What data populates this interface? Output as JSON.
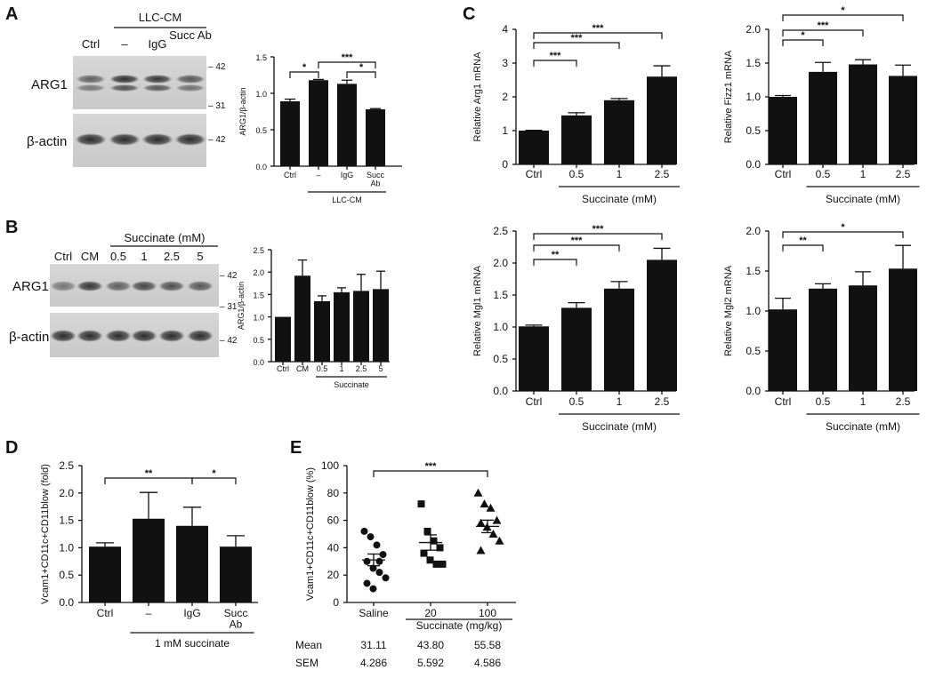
{
  "panel_labels": {
    "A": "A",
    "B": "B",
    "C": "C",
    "D": "D",
    "E": "E"
  },
  "blot_A": {
    "group_header": "LLC-CM",
    "lanes": [
      "Ctrl",
      "–",
      "IgG",
      "Succ\nAb"
    ],
    "protein_top": "ARG1",
    "protein_bottom": "β-actin",
    "mw_top": [
      "– 42",
      "– 31"
    ],
    "mw_bottom": "– 42"
  },
  "blot_B": {
    "group_header": "Succinate (mM)",
    "lanes": [
      "Ctrl",
      "CM",
      "0.5",
      "1",
      "2.5",
      "5"
    ],
    "protein_top": "ARG1",
    "protein_bottom": "β-actin",
    "mw_top": [
      "– 42",
      "– 31"
    ],
    "mw_bottom": "– 42"
  },
  "stats_E": {
    "row_labels": [
      "Mean",
      "SEM"
    ],
    "mean": [
      "31.11",
      "43.80",
      "55.58"
    ],
    "sem": [
      "4.286",
      "5.592",
      "4.586"
    ]
  },
  "chart_data": [
    {
      "id": "A_bar",
      "type": "bar",
      "ylabel": "ARG1/β-actin",
      "ylim": [
        0,
        1.5
      ],
      "yticks": [
        "0.0",
        "0.5",
        "1.0",
        "1.5"
      ],
      "categories": [
        "Ctrl",
        "–",
        "IgG",
        "Succ\nAb"
      ],
      "values": [
        0.89,
        1.18,
        1.13,
        0.78
      ],
      "errors": [
        0.03,
        0.01,
        0.05,
        0.01
      ],
      "group_label": "LLC-CM",
      "group_from": 1,
      "group_to": 3,
      "sig": [
        {
          "from": 0,
          "to": 1,
          "label": "*"
        },
        {
          "from": 1,
          "to": 3,
          "label": "***"
        },
        {
          "from": 2,
          "to": 3,
          "label": "*"
        }
      ]
    },
    {
      "id": "B_bar",
      "type": "bar",
      "ylabel": "ARG1/β-actin",
      "ylim": [
        0,
        2.5
      ],
      "yticks": [
        "0.0",
        "0.5",
        "1.0",
        "1.5",
        "2.0",
        "2.5"
      ],
      "categories": [
        "Ctrl",
        "CM",
        "0.5",
        "1",
        "2.5",
        "5"
      ],
      "values": [
        1.0,
        1.92,
        1.35,
        1.55,
        1.58,
        1.62
      ],
      "errors": [
        0,
        0.35,
        0.12,
        0.1,
        0.37,
        0.4
      ],
      "group_label": "Succinate",
      "group_from": 2,
      "group_to": 5,
      "sig": []
    },
    {
      "id": "C1",
      "type": "bar",
      "ylabel": "Relative Arg1 mRNA",
      "ylim": [
        0,
        4
      ],
      "yticks": [
        "0",
        "1",
        "2",
        "3",
        "4"
      ],
      "categories": [
        "Ctrl",
        "0.5",
        "1",
        "2.5"
      ],
      "values": [
        1.0,
        1.45,
        1.9,
        2.6
      ],
      "errors": [
        0.01,
        0.08,
        0.05,
        0.32
      ],
      "group_label": "Succinate (mM)",
      "group_from": 1,
      "group_to": 3,
      "sig": [
        {
          "from": 0,
          "to": 1,
          "label": "***"
        },
        {
          "from": 0,
          "to": 2,
          "label": "***"
        },
        {
          "from": 0,
          "to": 3,
          "label": "***"
        }
      ]
    },
    {
      "id": "C2",
      "type": "bar",
      "ylabel": "Relative Fizz1 mRNA",
      "ylim": [
        0,
        2
      ],
      "yticks": [
        "0.0",
        "0.5",
        "1.0",
        "1.5",
        "2.0"
      ],
      "categories": [
        "Ctrl",
        "0.5",
        "1",
        "2.5"
      ],
      "values": [
        1.0,
        1.37,
        1.48,
        1.31
      ],
      "errors": [
        0.02,
        0.14,
        0.07,
        0.16
      ],
      "group_label": "Succinate (mM)",
      "group_from": 1,
      "group_to": 3,
      "sig": [
        {
          "from": 0,
          "to": 1,
          "label": "*"
        },
        {
          "from": 0,
          "to": 2,
          "label": "***"
        },
        {
          "from": 0,
          "to": 3,
          "label": "*"
        }
      ]
    },
    {
      "id": "C3",
      "type": "bar",
      "ylabel": "Relative Mgl1 mRNA",
      "ylim": [
        0,
        2.5
      ],
      "yticks": [
        "0.0",
        "0.5",
        "1.0",
        "1.5",
        "2.0",
        "2.5"
      ],
      "categories": [
        "Ctrl",
        "0.5",
        "1",
        "2.5"
      ],
      "values": [
        1.01,
        1.3,
        1.6,
        2.05
      ],
      "errors": [
        0.02,
        0.08,
        0.11,
        0.18
      ],
      "group_label": "Succinate (mM)",
      "group_from": 1,
      "group_to": 3,
      "sig": [
        {
          "from": 0,
          "to": 1,
          "label": "**"
        },
        {
          "from": 0,
          "to": 2,
          "label": "***"
        },
        {
          "from": 0,
          "to": 3,
          "label": "***"
        }
      ]
    },
    {
      "id": "C4",
      "type": "bar",
      "ylabel": "Relative Mgl2 mRNA",
      "ylim": [
        0,
        2
      ],
      "yticks": [
        "0.0",
        "0.5",
        "1.0",
        "1.5",
        "2.0"
      ],
      "categories": [
        "Ctrl",
        "0.5",
        "1",
        "2.5"
      ],
      "values": [
        1.02,
        1.28,
        1.32,
        1.53
      ],
      "errors": [
        0.14,
        0.06,
        0.17,
        0.29
      ],
      "group_label": "Succinate (mM)",
      "group_from": 1,
      "group_to": 3,
      "sig": [
        {
          "from": 0,
          "to": 1,
          "label": "**"
        },
        {
          "from": 0,
          "to": 3,
          "label": "*"
        }
      ]
    },
    {
      "id": "D",
      "type": "bar",
      "ylabel": "Vcam1+CD11c+CD11blow (fold)",
      "ylim": [
        0,
        2.5
      ],
      "yticks": [
        "0.0",
        "0.5",
        "1.0",
        "1.5",
        "2.0",
        "2.5"
      ],
      "categories": [
        "Ctrl",
        "–",
        "IgG",
        "Succ\nAb"
      ],
      "values": [
        1.02,
        1.53,
        1.4,
        1.02
      ],
      "errors": [
        0.07,
        0.48,
        0.34,
        0.2
      ],
      "group_label": "1 mM succinate",
      "group_from": 1,
      "group_to": 3,
      "sig": [
        {
          "from": 0,
          "to": 2,
          "label": "**"
        },
        {
          "from": 2,
          "to": 3,
          "label": "*"
        }
      ]
    },
    {
      "id": "E",
      "type": "scatter",
      "ylabel": "Vcam1+CD11c+CD11blow (%)",
      "ylim": [
        0,
        100
      ],
      "yticks": [
        "0",
        "20",
        "40",
        "60",
        "80",
        "100"
      ],
      "categories": [
        "Saline",
        "20",
        "100"
      ],
      "markers": [
        "circle",
        "square",
        "triangle"
      ],
      "points": [
        [
          52,
          48,
          42,
          35,
          30,
          25,
          22,
          18,
          14,
          10,
          30
        ],
        [
          72,
          52,
          45,
          40,
          36,
          31,
          28,
          28
        ],
        [
          80,
          72,
          69,
          60,
          58,
          55,
          50,
          45,
          38
        ]
      ],
      "mean": [
        31.11,
        43.8,
        55.58
      ],
      "sem": [
        4.286,
        5.592,
        4.586
      ],
      "group_label": "Succinate (mg/kg)",
      "group_from": 1,
      "group_to": 2,
      "sig": [
        {
          "from": 0,
          "to": 2,
          "label": "***"
        }
      ]
    }
  ]
}
